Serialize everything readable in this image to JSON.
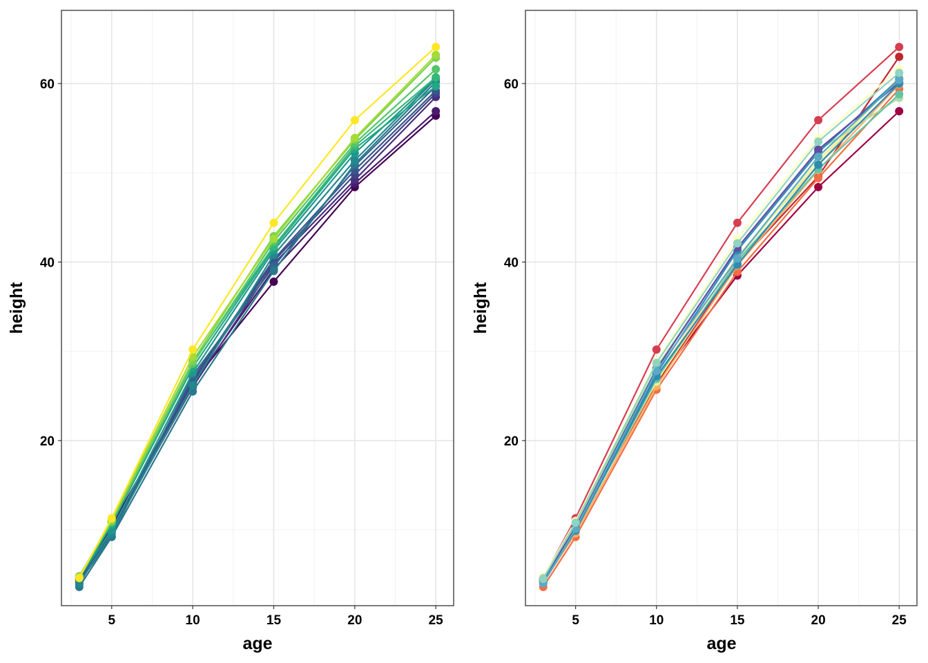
{
  "chart_data": [
    {
      "type": "line",
      "xlabel": "age",
      "ylabel": "height",
      "x": [
        3,
        5,
        10,
        15,
        20,
        25
      ],
      "xlim": [
        1.9,
        26.1
      ],
      "ylim": [
        1.5,
        68.2
      ],
      "xticks": [
        5,
        10,
        15,
        20,
        25
      ],
      "yticks": [
        20,
        40,
        60
      ],
      "grid": true,
      "legend": "none",
      "series": [
        {
          "values": [
            4.5,
            10.5,
            26.5,
            37.8,
            48.4,
            56.4
          ],
          "color": "#440154"
        },
        {
          "values": [
            4.4,
            10.4,
            26.3,
            39.2,
            48.8,
            56.9
          ],
          "color": "#481A6C"
        },
        {
          "values": [
            4.0,
            9.8,
            26.0,
            39.8,
            49.2,
            58.5
          ],
          "color": "#472F7D"
        },
        {
          "values": [
            3.9,
            9.9,
            26.6,
            40.1,
            49.8,
            58.9
          ],
          "color": "#414487"
        },
        {
          "values": [
            4.2,
            10.0,
            26.9,
            40.3,
            50.3,
            59.2
          ],
          "color": "#39568C"
        },
        {
          "values": [
            4.1,
            9.3,
            27.3,
            39.5,
            50.8,
            59.7
          ],
          "color": "#31688E"
        },
        {
          "values": [
            3.6,
            9.2,
            25.5,
            39.0,
            51.0,
            60.2
          ],
          "color": "#2A788E"
        },
        {
          "values": [
            4.0,
            9.6,
            26.2,
            40.8,
            51.4,
            60.5
          ],
          "color": "#23888E"
        },
        {
          "values": [
            4.6,
            10.0,
            27.6,
            41.3,
            52.2,
            60.6
          ],
          "color": "#1F988B"
        },
        {
          "values": [
            4.6,
            10.6,
            28.2,
            41.6,
            52.7,
            59.7
          ],
          "color": "#22A884"
        },
        {
          "values": [
            4.8,
            10.8,
            28.7,
            41.8,
            53.0,
            60.7
          ],
          "color": "#35B779"
        },
        {
          "values": [
            4.7,
            10.9,
            28.6,
            42.3,
            53.3,
            61.6
          ],
          "color": "#54C568"
        },
        {
          "values": [
            4.8,
            11.0,
            28.9,
            42.9,
            53.7,
            62.9
          ],
          "color": "#7AD151"
        },
        {
          "values": [
            4.7,
            11.2,
            29.4,
            42.6,
            53.9,
            63.2
          ],
          "color": "#A5DB36"
        },
        {
          "values": [
            4.6,
            11.3,
            30.2,
            44.4,
            55.9,
            64.1
          ],
          "color": "#FDE725"
        }
      ]
    },
    {
      "type": "line",
      "xlabel": "age",
      "ylabel": "height",
      "x": [
        3,
        5,
        10,
        15,
        20,
        25
      ],
      "xlim": [
        1.9,
        26.1
      ],
      "ylim": [
        1.5,
        68.2
      ],
      "xticks": [
        5,
        10,
        15,
        20,
        25
      ],
      "yticks": [
        20,
        40,
        60
      ],
      "grid": true,
      "legend": "none",
      "series": [
        {
          "values": [
            4.5,
            10.5,
            26.5,
            38.5,
            48.4,
            56.9
          ],
          "color": "#9E0142"
        },
        {
          "values": [
            4.4,
            10.3,
            26.3,
            39.8,
            49.6,
            63.0
          ],
          "color": "#C0272D"
        },
        {
          "values": [
            4.6,
            11.3,
            30.2,
            44.4,
            55.9,
            64.1
          ],
          "color": "#D53E4F"
        },
        {
          "values": [
            3.6,
            9.2,
            25.7,
            38.9,
            49.4,
            59.4
          ],
          "color": "#F46D43"
        },
        {
          "values": [
            4.1,
            9.6,
            26.1,
            39.6,
            50.3,
            59.9
          ],
          "color": "#FDAE61"
        },
        {
          "values": [
            4.3,
            10.0,
            27.1,
            40.6,
            51.0,
            60.7
          ],
          "color": "#FEE08B"
        },
        {
          "values": [
            4.7,
            11.0,
            28.9,
            42.6,
            53.9,
            61.6
          ],
          "color": "#FFFFBF"
        },
        {
          "values": [
            4.2,
            10.1,
            26.6,
            40.3,
            51.4,
            60.5
          ],
          "color": "#E6F598"
        },
        {
          "values": [
            4.6,
            10.6,
            28.2,
            41.5,
            52.5,
            58.4
          ],
          "color": "#ABDDA4"
        },
        {
          "values": [
            4.0,
            9.9,
            26.9,
            40.1,
            50.4,
            58.8
          ],
          "color": "#66C2A5"
        },
        {
          "values": [
            4.3,
            10.2,
            27.5,
            41.3,
            52.3,
            60.5
          ],
          "color": "#3288BD"
        },
        {
          "values": [
            4.4,
            10.3,
            28.0,
            41.6,
            52.6,
            60.1
          ],
          "color": "#5E4FA2"
        },
        {
          "values": [
            4.2,
            9.9,
            27.2,
            39.7,
            50.9,
            60.0
          ],
          "color": "#2E8BB0"
        },
        {
          "values": [
            4.0,
            10.1,
            27.8,
            40.4,
            51.8,
            60.4
          ],
          "color": "#5AA9C5"
        },
        {
          "values": [
            4.5,
            10.8,
            28.7,
            42.1,
            53.5,
            61.2
          ],
          "color": "#8FD3C0"
        }
      ]
    }
  ]
}
